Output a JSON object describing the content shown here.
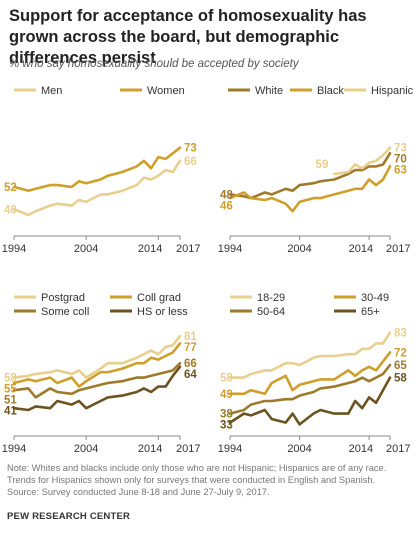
{
  "title": "Support for acceptance of homosexuality has grown across the board, but demographic differences persist",
  "subtitle": "% who say homosexuality should be accepted by society",
  "note": "Note: Whites and blacks include only those who are not Hispanic; Hispanics are of any race. Trends for Hispanics shown only for surveys that were conducted in English and Spanish.",
  "source_line": "Source: Survey conducted June 8-18 and June 27-July 9, 2017.",
  "org": "PEW RESEARCH CENTER",
  "colors": {
    "pale": "#e9cf8e",
    "gold": "#cf9f2b",
    "olive": "#9e7a2a",
    "dark": "#6b5420",
    "axis": "#888888"
  },
  "chart_data": [
    {
      "type": "line",
      "x_ticks": [
        "1994",
        "2004",
        "2014",
        "2017"
      ],
      "xlim": [
        1994,
        2017
      ],
      "ylim": [
        30,
        90
      ],
      "legend": "top",
      "series": [
        {
          "name": "Men",
          "color": "pale",
          "label": "66",
          "x": [
            1994,
            1996,
            1997,
            1999,
            2000,
            2002,
            2003,
            2004,
            2006,
            2007,
            2009,
            2011,
            2012,
            2013,
            2014,
            2015,
            2016,
            2017
          ],
          "y": [
            40,
            37,
            39,
            42,
            43,
            42,
            45,
            44,
            48,
            48,
            50,
            53,
            57,
            56,
            58,
            61,
            60,
            66
          ]
        },
        {
          "name": "Women",
          "color": "gold",
          "label": "73",
          "x": [
            1994,
            1996,
            1997,
            1999,
            2000,
            2002,
            2003,
            2004,
            2006,
            2007,
            2009,
            2011,
            2012,
            2013,
            2014,
            2015,
            2016,
            2017
          ],
          "y": [
            52,
            50,
            51,
            53,
            53,
            52,
            55,
            54,
            56,
            58,
            60,
            63,
            66,
            62,
            68,
            67,
            70,
            73
          ]
        }
      ],
      "start_labels": [
        {
          "text": "52",
          "series": 1
        },
        {
          "text": "40",
          "series": 0
        }
      ]
    },
    {
      "type": "line",
      "x_ticks": [
        "1994",
        "2004",
        "2014",
        "2017"
      ],
      "xlim": [
        1994,
        2017
      ],
      "ylim": [
        30,
        90
      ],
      "legend": "top",
      "series": [
        {
          "name": "White",
          "color": "olive",
          "label": "70",
          "x": [
            1994,
            1996,
            1997,
            1999,
            2000,
            2002,
            2003,
            2004,
            2006,
            2007,
            2009,
            2011,
            2012,
            2013,
            2014,
            2015,
            2016,
            2017
          ],
          "y": [
            48,
            47,
            46,
            49,
            48,
            51,
            50,
            53,
            54,
            55,
            56,
            59,
            61,
            61,
            63,
            63,
            64,
            70
          ]
        },
        {
          "name": "Black",
          "color": "gold",
          "label": "63",
          "x": [
            1994,
            1996,
            1997,
            1999,
            2000,
            2002,
            2003,
            2004,
            2006,
            2007,
            2009,
            2011,
            2012,
            2013,
            2014,
            2015,
            2016,
            2017
          ],
          "y": [
            46,
            49,
            46,
            45,
            46,
            43,
            39,
            44,
            46,
            46,
            48,
            50,
            51,
            51,
            56,
            53,
            56,
            63
          ]
        },
        {
          "name": "Hispanic",
          "color": "pale",
          "label": "73",
          "x": [
            2009,
            2011,
            2012,
            2013,
            2014,
            2015,
            2016,
            2017
          ],
          "y": [
            59,
            60,
            64,
            62,
            65,
            66,
            69,
            73
          ]
        }
      ],
      "start_labels": [
        {
          "text": "48",
          "series": 0
        },
        {
          "text": "46",
          "series": 1
        },
        {
          "text": "59",
          "series": 2
        }
      ]
    },
    {
      "type": "line",
      "x_ticks": [
        "1994",
        "2004",
        "2014",
        "2017"
      ],
      "xlim": [
        1994,
        2017
      ],
      "ylim": [
        30,
        90
      ],
      "legend": "top",
      "series": [
        {
          "name": "Postgrad",
          "color": "pale",
          "label": "81",
          "x": [
            1994,
            1996,
            1997,
            1999,
            2000,
            2002,
            2003,
            2004,
            2006,
            2007,
            2009,
            2011,
            2012,
            2013,
            2014,
            2015,
            2016,
            2017
          ],
          "y": [
            58,
            59,
            60,
            61,
            62,
            60,
            62,
            58,
            63,
            66,
            66,
            69,
            71,
            73,
            71,
            75,
            76,
            81
          ]
        },
        {
          "name": "Coll grad",
          "color": "gold",
          "label": "77",
          "x": [
            1994,
            1996,
            1997,
            1999,
            2000,
            2002,
            2003,
            2004,
            2006,
            2007,
            2009,
            2011,
            2012,
            2013,
            2014,
            2015,
            2016,
            2017
          ],
          "y": [
            55,
            57,
            56,
            58,
            55,
            58,
            53,
            56,
            61,
            61,
            63,
            66,
            66,
            69,
            68,
            70,
            72,
            77
          ]
        },
        {
          "name": "Some coll",
          "color": "olive",
          "label": "66",
          "x": [
            1994,
            1996,
            1997,
            1999,
            2000,
            2002,
            2003,
            2004,
            2006,
            2007,
            2009,
            2011,
            2012,
            2013,
            2014,
            2015,
            2016,
            2017
          ],
          "y": [
            51,
            52,
            47,
            52,
            50,
            49,
            51,
            52,
            54,
            55,
            56,
            58,
            58,
            59,
            60,
            61,
            62,
            66
          ]
        },
        {
          "name": "HS or less",
          "color": "dark",
          "label": "64",
          "x": [
            1994,
            1996,
            1997,
            1999,
            2000,
            2002,
            2003,
            2004,
            2006,
            2007,
            2009,
            2011,
            2012,
            2013,
            2014,
            2015,
            2016,
            2017
          ],
          "y": [
            41,
            40,
            42,
            41,
            45,
            43,
            45,
            41,
            45,
            47,
            48,
            50,
            52,
            50,
            53,
            53,
            59,
            64
          ]
        }
      ],
      "start_labels": [
        {
          "text": "58",
          "series": 0
        },
        {
          "text": "55",
          "series": 1
        },
        {
          "text": "51",
          "series": 2
        },
        {
          "text": "41",
          "series": 3
        }
      ]
    },
    {
      "type": "line",
      "x_ticks": [
        "1994",
        "2004",
        "2014",
        "2017"
      ],
      "xlim": [
        1994,
        2017
      ],
      "ylim": [
        30,
        90
      ],
      "legend": "top",
      "series": [
        {
          "name": "18-29",
          "color": "pale",
          "label": "83",
          "x": [
            1994,
            1996,
            1997,
            1999,
            2000,
            2002,
            2003,
            2004,
            2006,
            2007,
            2009,
            2011,
            2012,
            2013,
            2014,
            2015,
            2016,
            2017
          ],
          "y": [
            58,
            58,
            60,
            62,
            62,
            66,
            66,
            65,
            69,
            70,
            70,
            71,
            71,
            74,
            74,
            77,
            77,
            83
          ]
        },
        {
          "name": "30-49",
          "color": "gold",
          "label": "72",
          "x": [
            1994,
            1996,
            1997,
            1999,
            2000,
            2002,
            2003,
            2004,
            2006,
            2007,
            2009,
            2011,
            2012,
            2013,
            2014,
            2015,
            2016,
            2017
          ],
          "y": [
            49,
            49,
            51,
            49,
            55,
            59,
            51,
            54,
            56,
            57,
            57,
            62,
            59,
            62,
            64,
            62,
            67,
            72
          ]
        },
        {
          "name": "50-64",
          "color": "olive",
          "label": "65",
          "x": [
            1994,
            1996,
            1997,
            1999,
            2000,
            2002,
            2003,
            2004,
            2006,
            2007,
            2009,
            2011,
            2012,
            2013,
            2014,
            2015,
            2016,
            2017
          ],
          "y": [
            38,
            40,
            43,
            45,
            45,
            46,
            46,
            48,
            50,
            52,
            53,
            55,
            56,
            58,
            56,
            58,
            60,
            65
          ]
        },
        {
          "name": "65+",
          "color": "dark",
          "label": "58",
          "x": [
            1994,
            1996,
            1997,
            1999,
            2000,
            2002,
            2003,
            2004,
            2006,
            2007,
            2009,
            2011,
            2012,
            2013,
            2014,
            2015,
            2016,
            2017
          ],
          "y": [
            33,
            38,
            37,
            40,
            35,
            33,
            38,
            32,
            38,
            40,
            38,
            38,
            45,
            41,
            47,
            44,
            51,
            58
          ]
        }
      ],
      "start_labels": [
        {
          "text": "58",
          "series": 0
        },
        {
          "text": "49",
          "series": 1
        },
        {
          "text": "38",
          "series": 2
        },
        {
          "text": "33",
          "series": 3
        }
      ]
    }
  ]
}
